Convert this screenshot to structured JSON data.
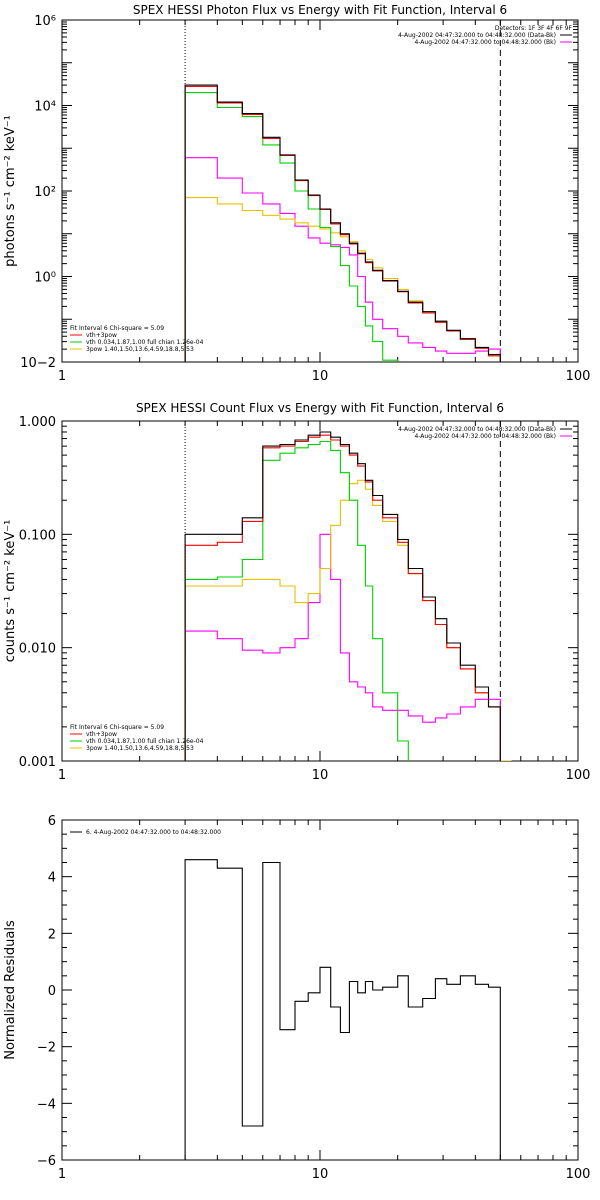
{
  "chart_data": [
    {
      "type": "line",
      "title": "SPEX HESSI Photon Flux vs Energy with Fit Function, Interval 6",
      "ylabel": "photons s⁻¹ cm⁻² keV⁻¹",
      "xlabel": "",
      "x_scale": "log",
      "y_scale": "log",
      "xlim": [
        1,
        100
      ],
      "ylim": [
        0.01,
        1000000
      ],
      "x_ticks": [
        "1",
        "10",
        "100"
      ],
      "y_ticks": [
        "10−2",
        "10⁰",
        "10²",
        "10⁴",
        "10⁶"
      ],
      "vlines": {
        "dotted": 3,
        "dashed": 50
      },
      "legend_top_right": {
        "header": "Detectors: 1F 3F 4F 6F 9F",
        "entries": [
          "4-Aug-2002 04:47:32.000 to 04:48:32.000 (Data-Bk)",
          "4-Aug-2002 04:47:32.000 to 04:48:32.000 (Bk)"
        ]
      },
      "legend_bottom_left": {
        "header": "Fit Interval 6   Chi-square = 5.09",
        "entries": [
          "vth+3pow",
          "vth 0.034,1.87,1.00  full chian 1.26e-04",
          "3pow 1.40,1.50,13.6,4.59,18.8,5.53"
        ]
      },
      "bin_edges": [
        3,
        4,
        5,
        6,
        7,
        8,
        9,
        10,
        11,
        12,
        13,
        14,
        15,
        16,
        17.5,
        20,
        22,
        25,
        28,
        31,
        35,
        40,
        45,
        50
      ],
      "series": [
        {
          "name": "4-Aug-2002 04:47:32.000 to 04:48:32.000 (Data-Bk)",
          "color": "#000000",
          "values": [
            30000,
            12000,
            6500,
            1800,
            700,
            180,
            80,
            38,
            18,
            10,
            6,
            3.5,
            2.2,
            1.4,
            0.8,
            0.45,
            0.25,
            0.15,
            0.09,
            0.055,
            0.035,
            0.022,
            0.015
          ]
        },
        {
          "name": "vth+3pow",
          "color": "#ff0000",
          "values": [
            28000,
            11500,
            6200,
            1700,
            680,
            175,
            78,
            37,
            17,
            9.5,
            5.8,
            3.4,
            2.1,
            1.35,
            0.78,
            0.44,
            0.24,
            0.14,
            0.085,
            0.053,
            0.034,
            0.021,
            0.014
          ]
        },
        {
          "name": "vth",
          "color": "#00d000",
          "values": [
            20000,
            9000,
            5500,
            1200,
            450,
            100,
            38,
            14,
            5,
            1.8,
            0.6,
            0.2,
            0.07,
            0.03,
            0.011
          ]
        },
        {
          "name": "3pow",
          "color": "#e8c000",
          "values": [
            70,
            50,
            35,
            27,
            22,
            18,
            15,
            13,
            10.5,
            8.5,
            6.5,
            4,
            2.5,
            1.6,
            0.9,
            0.5,
            0.27,
            0.15,
            0.088,
            0.053,
            0.034,
            0.021,
            0.014
          ]
        },
        {
          "name": "4-Aug-2002 04:47:32.000 to 04:48:32.000 (Bk)",
          "color": "#ff00ff",
          "values": [
            600,
            200,
            90,
            50,
            30,
            15,
            8,
            6,
            5.5,
            4.8,
            3.2,
            1.0,
            0.25,
            0.1,
            0.06,
            0.04,
            0.028,
            0.022,
            0.018,
            0.016,
            0.016,
            0.018,
            0.02
          ]
        }
      ]
    },
    {
      "type": "line",
      "title": "SPEX HESSI Count Flux vs Energy with Fit Function, Interval 6",
      "ylabel": "counts s⁻¹ cm⁻² keV⁻¹",
      "xlabel": "",
      "x_scale": "log",
      "y_scale": "log",
      "xlim": [
        1,
        100
      ],
      "ylim": [
        0.001,
        1.0
      ],
      "x_ticks": [
        "1",
        "10",
        "100"
      ],
      "y_ticks": [
        "0.001",
        "0.010",
        "0.100",
        "1.000"
      ],
      "vlines": {
        "dotted": 3,
        "dashed": 50
      },
      "legend_top_right": {
        "entries": [
          "4-Aug-2002 04:47:32.000 to 04:48:32.000 (Data-Bk)",
          "4-Aug-2002 04:47:32.000 to 04:48:32.000 (Bk)"
        ]
      },
      "legend_bottom_left": {
        "header": "Fit Interval 6   Chi-square = 5.09",
        "entries": [
          "vth+3pow",
          "vth 0.034,1.87,1.00  full chian 1.26e-04",
          "3pow 1.40,1.50,13.6,4.59,18.8,5.53"
        ]
      },
      "bin_edges": [
        3,
        4,
        5,
        6,
        7,
        8,
        9,
        10,
        11,
        12,
        13,
        14,
        15,
        16,
        17.5,
        20,
        22,
        25,
        28,
        31,
        35,
        40,
        45,
        50,
        55
      ],
      "series": [
        {
          "name": "4-Aug-2002 04:47:32.000 to 04:48:32.000 (Data-Bk)",
          "color": "#000000",
          "values": [
            0.1,
            0.1,
            0.14,
            0.6,
            0.62,
            0.68,
            0.75,
            0.8,
            0.72,
            0.62,
            0.52,
            0.42,
            0.3,
            0.22,
            0.15,
            0.09,
            0.05,
            0.028,
            0.018,
            0.011,
            0.007,
            0.0045,
            0.003
          ]
        },
        {
          "name": "vth+3pow",
          "color": "#ff0000",
          "values": [
            0.08,
            0.085,
            0.13,
            0.58,
            0.6,
            0.66,
            0.72,
            0.75,
            0.68,
            0.6,
            0.5,
            0.4,
            0.29,
            0.2,
            0.14,
            0.085,
            0.045,
            0.026,
            0.016,
            0.01,
            0.0065,
            0.004,
            0.003
          ]
        },
        {
          "name": "vth",
          "color": "#00d000",
          "values": [
            0.04,
            0.042,
            0.06,
            0.45,
            0.52,
            0.58,
            0.62,
            0.66,
            0.55,
            0.35,
            0.2,
            0.08,
            0.035,
            0.012,
            0.004,
            0.0015
          ]
        },
        {
          "name": "3pow",
          "color": "#e8c000",
          "values": [
            0.035,
            0.035,
            0.04,
            0.04,
            0.035,
            0.025,
            0.03,
            0.05,
            0.12,
            0.2,
            0.28,
            0.3,
            0.25,
            0.18,
            0.13,
            0.08,
            0.045,
            0.026,
            0.016,
            0.01,
            0.0065,
            0.004,
            0.003,
            0.001
          ]
        },
        {
          "name": "4-Aug-2002 04:47:32.000 to 04:48:32.000 (Bk)",
          "color": "#ff00ff",
          "values": [
            0.014,
            0.012,
            0.0095,
            0.009,
            0.01,
            0.012,
            0.025,
            0.1,
            0.04,
            0.009,
            0.005,
            0.0045,
            0.004,
            0.003,
            0.0028,
            0.0028,
            0.0025,
            0.0022,
            0.0024,
            0.0026,
            0.003,
            0.0035,
            0.0035
          ]
        }
      ]
    },
    {
      "type": "line",
      "title": "",
      "ylabel": "Normalized Residuals",
      "xlabel": "",
      "x_scale": "log",
      "y_scale": "linear",
      "xlim": [
        1,
        100
      ],
      "ylim": [
        -6,
        6
      ],
      "x_ticks": [
        "1",
        "10",
        "100"
      ],
      "y_ticks": [
        "−6",
        "−4",
        "−2",
        "0",
        "2",
        "4",
        "6"
      ],
      "legend_top_left": {
        "entries": [
          "6.  4-Aug-2002 04:47:32.000 to 04:48:32.000"
        ]
      },
      "bin_edges": [
        3,
        4,
        5,
        6,
        7,
        8,
        9,
        10,
        11,
        12,
        13,
        14,
        15,
        16,
        17.5,
        20,
        22,
        25,
        28,
        31,
        35,
        40,
        45,
        50
      ],
      "series": [
        {
          "name": "6.  4-Aug-2002 04:47:32.000 to 04:48:32.000",
          "color": "#000000",
          "values": [
            4.6,
            4.3,
            -4.8,
            4.5,
            -1.4,
            -0.4,
            -0.1,
            0.8,
            -0.6,
            -1.5,
            0.3,
            -0.1,
            0.3,
            0.0,
            0.1,
            0.5,
            -0.6,
            -0.3,
            0.4,
            0.2,
            0.5,
            0.2,
            0.1
          ]
        }
      ]
    }
  ]
}
